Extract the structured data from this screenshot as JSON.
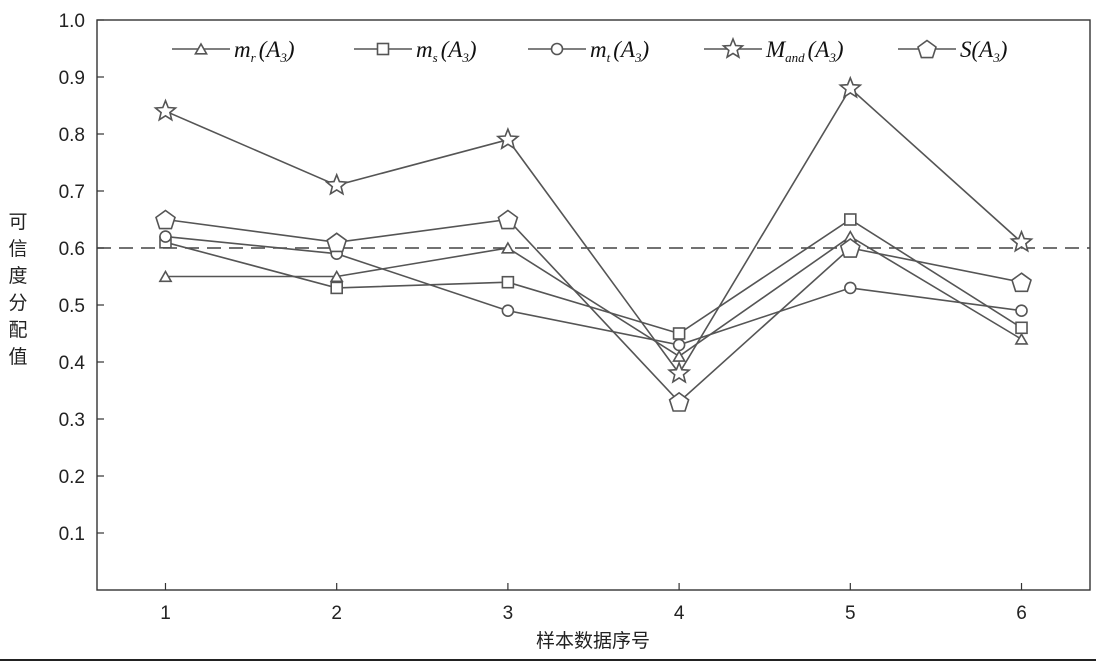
{
  "chart_data": {
    "type": "line",
    "title": "",
    "xlabel": "样本数据序号",
    "ylabel": "可信度分配值",
    "x": [
      1,
      2,
      3,
      4,
      5,
      6
    ],
    "xlim": [
      0.6,
      6.4
    ],
    "ylim": [
      0,
      1.0
    ],
    "yticks": [
      "0.1",
      "0.2",
      "0.3",
      "0.4",
      "0.5",
      "0.6",
      "0.7",
      "0.8",
      "0.9",
      "1.0"
    ],
    "xticks": [
      "1",
      "2",
      "3",
      "4",
      "5",
      "6"
    ],
    "grid": false,
    "legend_position": "top",
    "reference_line": {
      "y": 0.6,
      "style": "dashed"
    },
    "series": [
      {
        "name": "m_r(A_3)",
        "base": "m",
        "sub": "r",
        "arg": "(A",
        "argsub": "3",
        "marker": "triangle",
        "values": [
          0.55,
          0.55,
          0.6,
          0.41,
          0.62,
          0.44
        ]
      },
      {
        "name": "m_s(A_3)",
        "base": "m",
        "sub": "s",
        "arg": "(A",
        "argsub": "3",
        "marker": "square",
        "values": [
          0.61,
          0.53,
          0.54,
          0.45,
          0.65,
          0.46
        ]
      },
      {
        "name": "m_t(A_3)",
        "base": "m",
        "sub": "t",
        "arg": "(A",
        "argsub": "3",
        "marker": "circle",
        "values": [
          0.62,
          0.59,
          0.49,
          0.43,
          0.53,
          0.49
        ]
      },
      {
        "name": "M_and(A_3)",
        "base": "M",
        "sub": "and",
        "arg": "(A",
        "argsub": "3",
        "marker": "star",
        "values": [
          0.84,
          0.71,
          0.79,
          0.38,
          0.88,
          0.61
        ]
      },
      {
        "name": "S(A_3)",
        "base": "S",
        "sub": "",
        "arg": "(A",
        "argsub": "3",
        "marker": "pentagon",
        "values": [
          0.65,
          0.61,
          0.65,
          0.33,
          0.6,
          0.54
        ]
      }
    ],
    "colors": {
      "line": "#555555",
      "axis": "#333333",
      "dash": "#444444"
    }
  }
}
